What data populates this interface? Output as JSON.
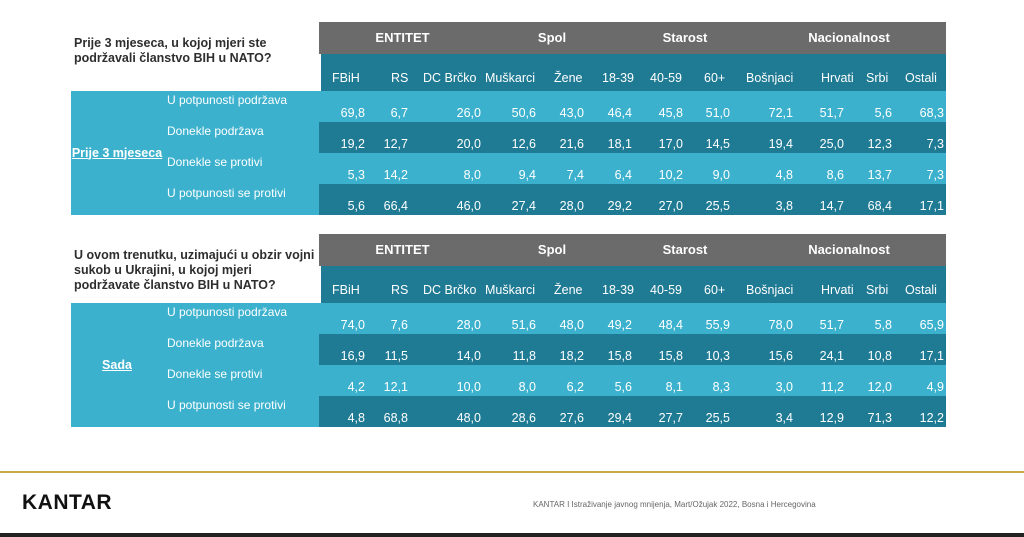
{
  "columns": {
    "groups": [
      "ENTITET",
      "Spol",
      "Starost",
      "Nacionalnost"
    ],
    "labels": [
      "FBiH",
      "RS",
      "DC Brčko",
      "Muškarci",
      "Žene",
      "18-39",
      "40-59",
      "60+",
      "Bošnjaci",
      "Hrvati",
      "Srbi",
      "Ostali"
    ]
  },
  "tables": [
    {
      "question": "Prije 3 mjeseca, u kojoj mjeri ste podržavali članstvo BIH u NATO?",
      "period": "Prije 3 mjeseca",
      "rows": [
        {
          "label": "U potpunosti podržava",
          "values": [
            "69,8",
            "6,7",
            "26,0",
            "50,6",
            "43,0",
            "46,4",
            "45,8",
            "51,0",
            "72,1",
            "51,7",
            "5,6",
            "68,3"
          ]
        },
        {
          "label": "Donekle podržava",
          "values": [
            "19,2",
            "12,7",
            "20,0",
            "12,6",
            "21,6",
            "18,1",
            "17,0",
            "14,5",
            "19,4",
            "25,0",
            "12,3",
            "7,3"
          ]
        },
        {
          "label": "Donekle se protivi",
          "values": [
            "5,3",
            "14,2",
            "8,0",
            "9,4",
            "7,4",
            "6,4",
            "10,2",
            "9,0",
            "4,8",
            "8,6",
            "13,7",
            "7,3"
          ]
        },
        {
          "label": "U potpunosti se protivi",
          "values": [
            "5,6",
            "66,4",
            "46,0",
            "27,4",
            "28,0",
            "29,2",
            "27,0",
            "25,5",
            "3,8",
            "14,7",
            "68,4",
            "17,1"
          ]
        }
      ]
    },
    {
      "question": "U ovom trenutku, uzimajući u obzir vojni sukob u Ukrajini, u kojoj mjeri podržavate članstvo BIH u NATO?",
      "period": "Sada",
      "rows": [
        {
          "label": "U potpunosti podržava",
          "values": [
            "74,0",
            "7,6",
            "28,0",
            "51,6",
            "48,0",
            "49,2",
            "48,4",
            "55,9",
            "78,0",
            "51,7",
            "5,8",
            "65,9"
          ]
        },
        {
          "label": "Donekle podržava",
          "values": [
            "16,9",
            "11,5",
            "14,0",
            "11,8",
            "18,2",
            "15,8",
            "15,8",
            "10,3",
            "15,6",
            "24,1",
            "10,8",
            "17,1"
          ]
        },
        {
          "label": "Donekle se protivi",
          "values": [
            "4,2",
            "12,1",
            "10,0",
            "8,0",
            "6,2",
            "5,6",
            "8,1",
            "8,3",
            "3,0",
            "11,2",
            "12,0",
            "4,9"
          ]
        },
        {
          "label": "U potpunosti se protivi",
          "values": [
            "4,8",
            "68,8",
            "48,0",
            "28,6",
            "27,6",
            "29,4",
            "27,7",
            "25,5",
            "3,4",
            "12,9",
            "71,3",
            "12,2"
          ]
        }
      ]
    }
  ],
  "footer": {
    "logo": "KANTAR",
    "note": "KANTAR I  Istraživanje javnog mnijenja, Mart/Ožujak 2022, Bosna i Hercegovina",
    "accent_color": "#c8aa48"
  }
}
